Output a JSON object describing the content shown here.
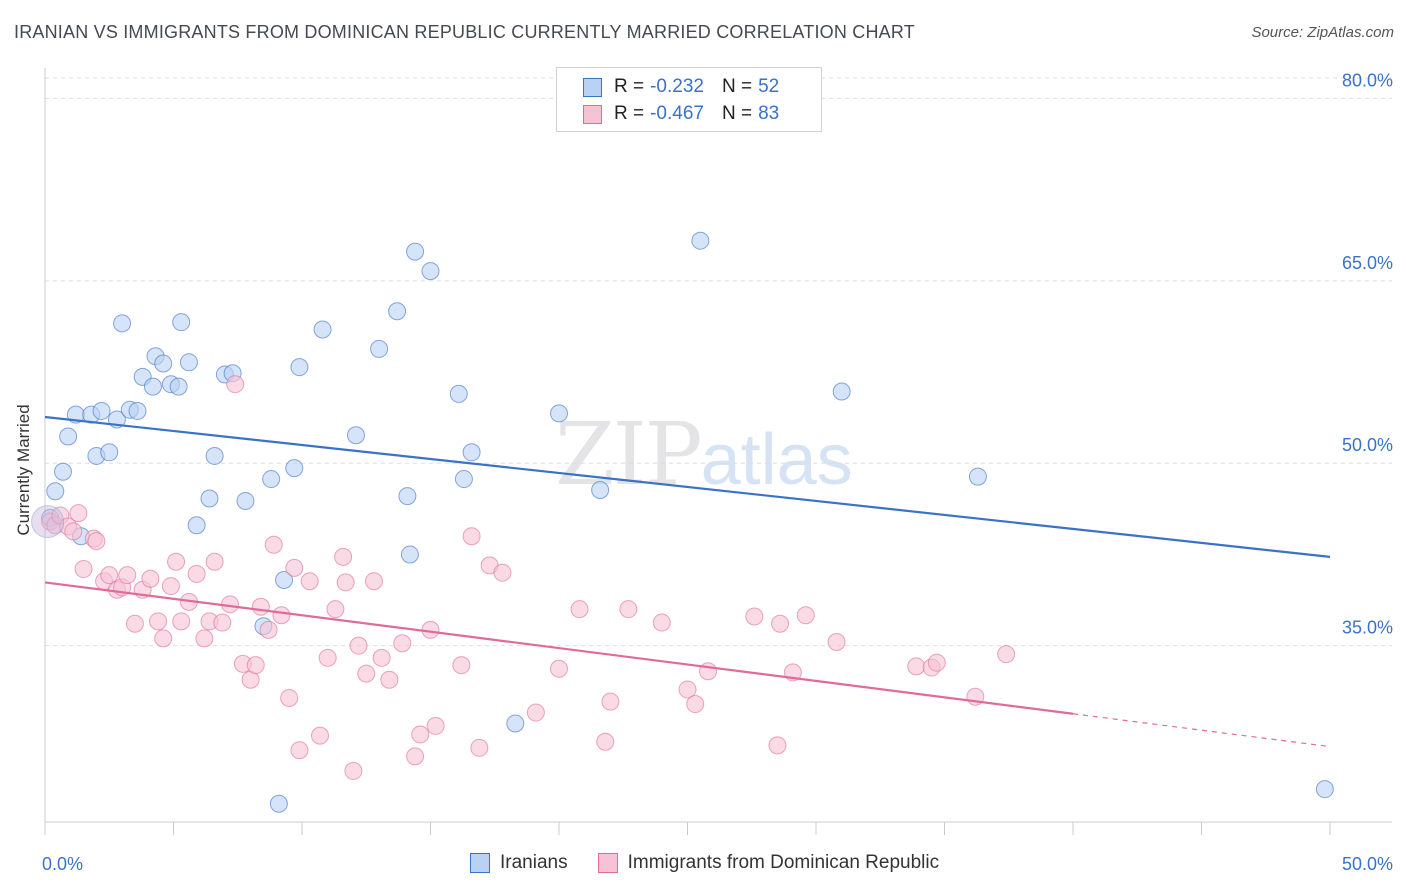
{
  "title": "IRANIAN VS IMMIGRANTS FROM DOMINICAN REPUBLIC CURRENTLY MARRIED CORRELATION CHART",
  "source": "Source: ZipAtlas.com",
  "watermark": {
    "zip": "ZIP",
    "atlas": "atlas"
  },
  "legend": {
    "rows": [
      {
        "r_label": "R =",
        "r_value": "-0.232",
        "n_label": "N =",
        "n_value": "52"
      },
      {
        "r_label": "R =",
        "r_value": "-0.467",
        "n_label": "N =",
        "n_value": "83"
      }
    ]
  },
  "bottom_legend": {
    "iranians": "Iranians",
    "dominican": "Immigrants from Dominican Republic"
  },
  "colors": {
    "blue": "#3a72c8",
    "blue_fill": "#b9d2f3",
    "pink": "#e06b97",
    "pink_fill": "#f7c3d4"
  },
  "chart_data": {
    "type": "scatter",
    "xlabel": "",
    "ylabel": "Currently Married",
    "xlim": [
      0,
      50
    ],
    "ylim": [
      20.5,
      82.5
    ],
    "x_tick_labels": [
      "0.0%",
      "50.0%"
    ],
    "y_ticks": [
      35,
      50,
      65,
      80
    ],
    "y_tick_labels": [
      "35.0%",
      "50.0%",
      "65.0%",
      "80.0%"
    ],
    "grid": true,
    "series": [
      {
        "name": "Iranians",
        "color": "#3a72c8",
        "trend": {
          "x": [
            0,
            50
          ],
          "y": [
            53.8,
            42.3
          ]
        },
        "points": [
          [
            0.2,
            45.5
          ],
          [
            0.4,
            47.7
          ],
          [
            0.7,
            49.3
          ],
          [
            0.9,
            52.2
          ],
          [
            1.2,
            54.0
          ],
          [
            1.4,
            44.0
          ],
          [
            1.8,
            54.0
          ],
          [
            2.0,
            50.6
          ],
          [
            2.2,
            54.3
          ],
          [
            2.5,
            50.9
          ],
          [
            2.8,
            53.6
          ],
          [
            3.0,
            61.5
          ],
          [
            3.3,
            54.4
          ],
          [
            3.6,
            54.3
          ],
          [
            3.8,
            57.1
          ],
          [
            4.2,
            56.3
          ],
          [
            4.3,
            58.8
          ],
          [
            4.6,
            58.2
          ],
          [
            4.9,
            56.5
          ],
          [
            5.2,
            56.3
          ],
          [
            5.3,
            61.6
          ],
          [
            5.6,
            58.3
          ],
          [
            5.9,
            44.9
          ],
          [
            6.4,
            47.1
          ],
          [
            6.6,
            50.6
          ],
          [
            7.0,
            57.3
          ],
          [
            7.3,
            57.4
          ],
          [
            7.8,
            46.9
          ],
          [
            8.5,
            36.6
          ],
          [
            8.8,
            48.7
          ],
          [
            9.1,
            22.0
          ],
          [
            9.3,
            40.4
          ],
          [
            9.7,
            49.6
          ],
          [
            9.9,
            57.9
          ],
          [
            10.8,
            61.0
          ],
          [
            12.1,
            52.3
          ],
          [
            13.0,
            59.4
          ],
          [
            13.7,
            62.5
          ],
          [
            14.1,
            47.3
          ],
          [
            14.2,
            42.5
          ],
          [
            14.4,
            67.4
          ],
          [
            15.0,
            65.8
          ],
          [
            16.1,
            55.7
          ],
          [
            16.3,
            48.7
          ],
          [
            16.6,
            50.9
          ],
          [
            18.3,
            28.6
          ],
          [
            20.0,
            54.1
          ],
          [
            21.6,
            47.8
          ],
          [
            25.5,
            68.3
          ],
          [
            31.0,
            55.9
          ],
          [
            36.3,
            48.9
          ],
          [
            49.8,
            23.2
          ]
        ]
      },
      {
        "name": "Immigrants from Dominican Republic",
        "color": "#e06b97",
        "trend": {
          "x": [
            0,
            50
          ],
          "y": [
            40.2,
            26.7
          ]
        },
        "trend_solid_until": 40,
        "points": [
          [
            0.2,
            45.2
          ],
          [
            0.4,
            44.9
          ],
          [
            0.6,
            45.7
          ],
          [
            0.9,
            44.8
          ],
          [
            1.1,
            44.4
          ],
          [
            1.3,
            45.9
          ],
          [
            1.5,
            41.3
          ],
          [
            1.9,
            43.8
          ],
          [
            2.0,
            43.6
          ],
          [
            2.3,
            40.3
          ],
          [
            2.5,
            40.8
          ],
          [
            2.8,
            39.6
          ],
          [
            3.0,
            39.8
          ],
          [
            3.2,
            40.8
          ],
          [
            3.5,
            36.8
          ],
          [
            3.8,
            39.6
          ],
          [
            4.1,
            40.5
          ],
          [
            4.4,
            37.0
          ],
          [
            4.6,
            35.6
          ],
          [
            4.9,
            39.9
          ],
          [
            5.1,
            41.9
          ],
          [
            5.3,
            37.0
          ],
          [
            5.6,
            38.6
          ],
          [
            5.9,
            40.9
          ],
          [
            6.2,
            35.6
          ],
          [
            6.4,
            37.0
          ],
          [
            6.6,
            41.9
          ],
          [
            6.9,
            36.9
          ],
          [
            7.2,
            38.4
          ],
          [
            7.4,
            56.5
          ],
          [
            7.7,
            33.5
          ],
          [
            8.0,
            32.2
          ],
          [
            8.2,
            33.4
          ],
          [
            8.4,
            38.2
          ],
          [
            8.7,
            36.3
          ],
          [
            8.9,
            43.3
          ],
          [
            9.2,
            37.5
          ],
          [
            9.5,
            30.7
          ],
          [
            9.7,
            41.4
          ],
          [
            9.9,
            26.4
          ],
          [
            10.3,
            40.3
          ],
          [
            10.7,
            27.6
          ],
          [
            11.0,
            34.0
          ],
          [
            11.3,
            38.0
          ],
          [
            11.6,
            42.3
          ],
          [
            11.7,
            40.2
          ],
          [
            12.0,
            24.7
          ],
          [
            12.2,
            35.0
          ],
          [
            12.5,
            32.7
          ],
          [
            12.8,
            40.3
          ],
          [
            13.1,
            34.0
          ],
          [
            13.4,
            32.2
          ],
          [
            13.9,
            35.2
          ],
          [
            14.4,
            25.9
          ],
          [
            14.6,
            27.7
          ],
          [
            15.0,
            36.3
          ],
          [
            15.2,
            28.4
          ],
          [
            16.2,
            33.4
          ],
          [
            16.6,
            44.0
          ],
          [
            16.9,
            26.6
          ],
          [
            17.3,
            41.6
          ],
          [
            17.8,
            41.0
          ],
          [
            19.1,
            29.5
          ],
          [
            20.0,
            33.1
          ],
          [
            20.8,
            38.0
          ],
          [
            21.8,
            27.1
          ],
          [
            22.0,
            30.4
          ],
          [
            22.7,
            38.0
          ],
          [
            24.0,
            36.9
          ],
          [
            25.0,
            31.4
          ],
          [
            25.3,
            30.2
          ],
          [
            25.8,
            32.9
          ],
          [
            27.6,
            37.4
          ],
          [
            28.5,
            26.8
          ],
          [
            28.6,
            36.8
          ],
          [
            29.1,
            32.8
          ],
          [
            29.6,
            37.5
          ],
          [
            30.8,
            35.3
          ],
          [
            33.9,
            33.3
          ],
          [
            34.5,
            33.2
          ],
          [
            34.7,
            33.6
          ],
          [
            36.2,
            30.8
          ],
          [
            37.4,
            34.3
          ]
        ]
      }
    ]
  }
}
